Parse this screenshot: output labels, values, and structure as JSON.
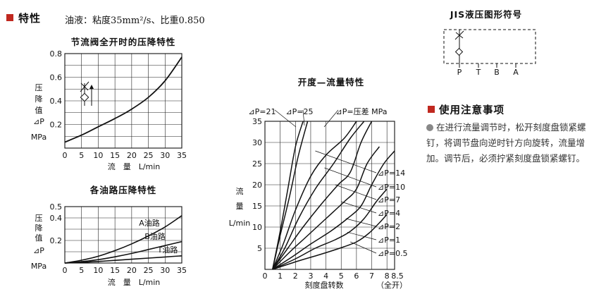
{
  "properties": {
    "heading": "特性",
    "fluid_note": "油液：粘度35mm²/s、比重0.850"
  },
  "precautions": {
    "heading": "使用注意事项",
    "text": "在进行流量调节时，松开刻度盘锁紧螺钉，将调节盘向逆时针方向旋转，流量增加。调节后，必须拧紧刻度盘锁紧螺钉。"
  },
  "jis_symbol": {
    "title": "JIS液压图形符号",
    "ports": [
      "P",
      "T",
      "B",
      "A"
    ]
  },
  "colors": {
    "accent": "#c0281f",
    "line": "#111111"
  },
  "chart_data": [
    {
      "type": "line",
      "title": "节流阀全开时的压降特性",
      "xlabel": "流　量　L/min",
      "ylabel_lines": [
        "压",
        "降",
        "值",
        "⊿P",
        "MPa"
      ],
      "xlim": [
        0,
        35
      ],
      "ylim": [
        0,
        0.8
      ],
      "xticks": [
        0,
        5,
        10,
        15,
        20,
        25,
        30,
        35
      ],
      "yticks": [
        0.2,
        0.4,
        0.6,
        0.8
      ],
      "grid": true,
      "inset_icon": "throttle-check-valve-symbol",
      "series": [
        {
          "x": [
            0,
            5,
            10,
            15,
            20,
            25,
            30,
            35
          ],
          "y": [
            0.05,
            0.11,
            0.18,
            0.25,
            0.33,
            0.43,
            0.57,
            0.77
          ]
        }
      ]
    },
    {
      "type": "line",
      "title": "各油路压降特性",
      "xlabel": "流　量　L/min",
      "ylabel_lines": [
        "压",
        "降",
        "值",
        "⊿P",
        "MPa"
      ],
      "xlim": [
        0,
        35
      ],
      "ylim": [
        0,
        0.5
      ],
      "xticks": [
        0,
        5,
        10,
        15,
        20,
        25,
        30,
        35
      ],
      "yticks": [
        0.2,
        0.4
      ],
      "ytick_labels": {
        "0.5": "0.5",
        "0.4": "0.4",
        "0.2": "0.2"
      },
      "grid": true,
      "series": [
        {
          "name": "A油路",
          "x": [
            0,
            5,
            10,
            15,
            20,
            25,
            30,
            35
          ],
          "y": [
            0,
            0.025,
            0.06,
            0.11,
            0.17,
            0.24,
            0.32,
            0.42
          ]
        },
        {
          "name": "B油路",
          "x": [
            0,
            5,
            10,
            15,
            20,
            25,
            30,
            35
          ],
          "y": [
            0,
            0.012,
            0.03,
            0.055,
            0.085,
            0.12,
            0.155,
            0.19
          ]
        },
        {
          "name": "T油路",
          "x": [
            0,
            5,
            10,
            15,
            20,
            25,
            30,
            35
          ],
          "y": [
            0,
            0.006,
            0.014,
            0.024,
            0.034,
            0.044,
            0.054,
            0.064
          ]
        }
      ]
    },
    {
      "type": "line",
      "title": "开度—流量特性",
      "xlabel": "刻度盘转数",
      "xlabel_extra": "（全开）",
      "ylabel_lines": [
        "流",
        "量",
        "L/min"
      ],
      "xlim": [
        0,
        8.5
      ],
      "ylim": [
        0,
        35
      ],
      "xticks": [
        0,
        1,
        2,
        3,
        4,
        5,
        6,
        7,
        8,
        8.5
      ],
      "yticks": [
        5,
        10,
        15,
        20,
        25,
        30,
        35
      ],
      "grid": true,
      "pressure_label": "⊿P=压差 MPa",
      "series": [
        {
          "name": "⊿P=21",
          "x": [
            0.5,
            1,
            1.5,
            2,
            2.5
          ],
          "y": [
            0,
            9,
            19,
            29,
            35
          ]
        },
        {
          "name": "⊿P=25",
          "x": [
            0.5,
            1,
            1.6,
            2.2,
            2.8
          ],
          "y": [
            0,
            8,
            17,
            27,
            35
          ]
        },
        {
          "name": "⊿P=14",
          "x": [
            0.5,
            1.2,
            2,
            3,
            4,
            5.2,
            6
          ],
          "y": [
            0,
            6,
            14,
            22,
            27,
            31,
            35
          ]
        },
        {
          "name": "⊿P=10",
          "x": [
            0.5,
            1.3,
            2.2,
            3.3,
            4.5,
            5.6,
            6.5
          ],
          "y": [
            0,
            5,
            12,
            19,
            25,
            31,
            35
          ]
        },
        {
          "name": "⊿P=7",
          "x": [
            0.5,
            1.5,
            2.5,
            3.6,
            4.8,
            5.6,
            6.3,
            7
          ],
          "y": [
            0,
            5,
            10,
            15,
            20,
            23,
            30,
            35
          ]
        },
        {
          "name": "⊿P=4",
          "x": [
            0.5,
            1.6,
            2.8,
            4,
            5.2,
            6,
            6.7,
            7.5
          ],
          "y": [
            0,
            4,
            8,
            12,
            16,
            19,
            25,
            29
          ]
        },
        {
          "name": "⊿P=2",
          "x": [
            0.5,
            1.8,
            3,
            4.3,
            5.4,
            6.3,
            7,
            7.8,
            8.5
          ],
          "y": [
            0,
            3,
            6,
            9,
            12,
            15,
            20,
            25,
            28
          ]
        },
        {
          "name": "⊿P=1",
          "x": [
            0.5,
            2,
            3.3,
            4.6,
            5.6,
            6.5,
            7.3,
            8
          ],
          "y": [
            0,
            2.5,
            5,
            7,
            9,
            12,
            16,
            19
          ]
        },
        {
          "name": "⊿P=0.5",
          "x": [
            0.5,
            2.2,
            3.6,
            4.9,
            6,
            6.8,
            7.5,
            8
          ],
          "y": [
            0,
            2,
            3.5,
            5,
            6.5,
            8.5,
            11,
            13
          ]
        }
      ]
    }
  ]
}
